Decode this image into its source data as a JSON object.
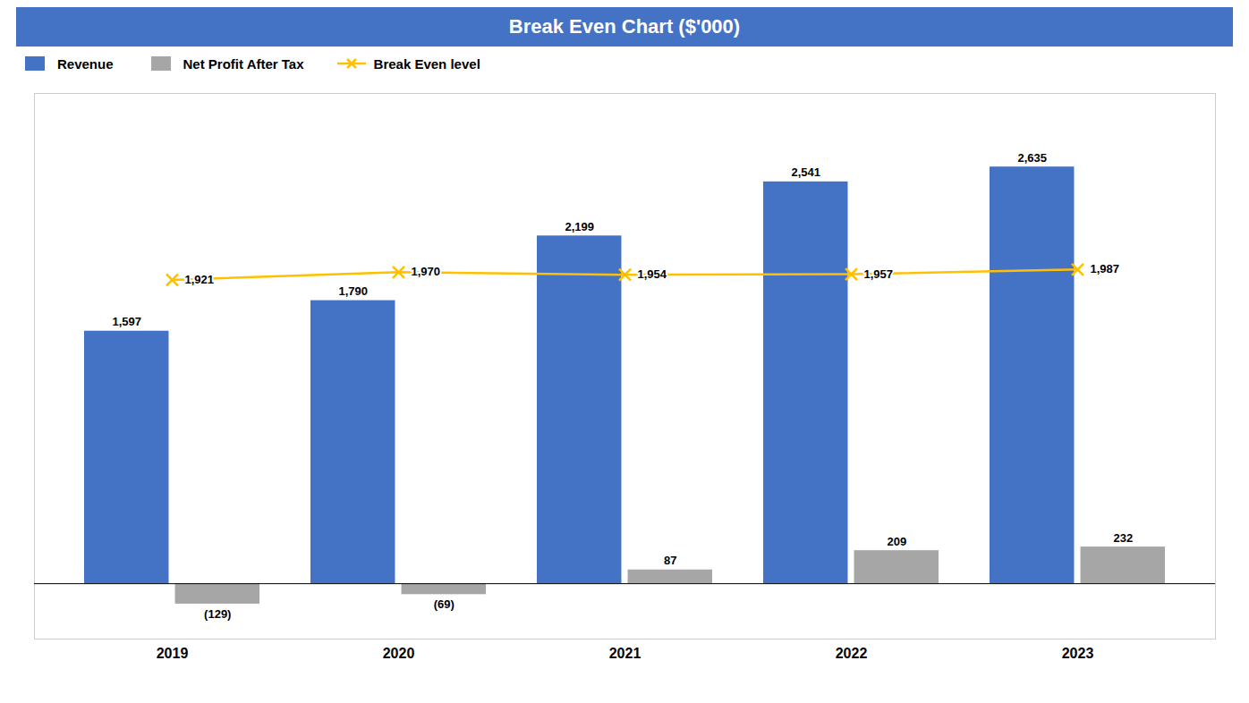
{
  "chart_data": {
    "type": "bar",
    "title": "Break Even Chart ($'000)",
    "categories": [
      "2019",
      "2020",
      "2021",
      "2022",
      "2023"
    ],
    "series": [
      {
        "name": "Revenue",
        "color": "#4472C4",
        "values": [
          1597,
          1790,
          2199,
          2541,
          2635
        ],
        "value_labels": [
          "1,597",
          "1,790",
          "2,199",
          "2,541",
          "2,635"
        ]
      },
      {
        "name": "Net Profit After Tax",
        "color": "#A6A6A6",
        "values": [
          -129,
          -69,
          87,
          209,
          232
        ],
        "value_labels": [
          "(129)",
          "(69)",
          "87",
          "209",
          "232"
        ]
      },
      {
        "name": "Break Even level",
        "type": "line",
        "color": "#FFC000",
        "marker": "x",
        "values": [
          1921,
          1970,
          1954,
          1957,
          1987
        ],
        "value_labels": [
          "1,921",
          "1,970",
          "1,954",
          "1,957",
          "1,987"
        ]
      }
    ],
    "ylim": [
      -350,
      3100
    ],
    "data_labels": true,
    "tick_labels": "x",
    "legend": "upper left"
  }
}
